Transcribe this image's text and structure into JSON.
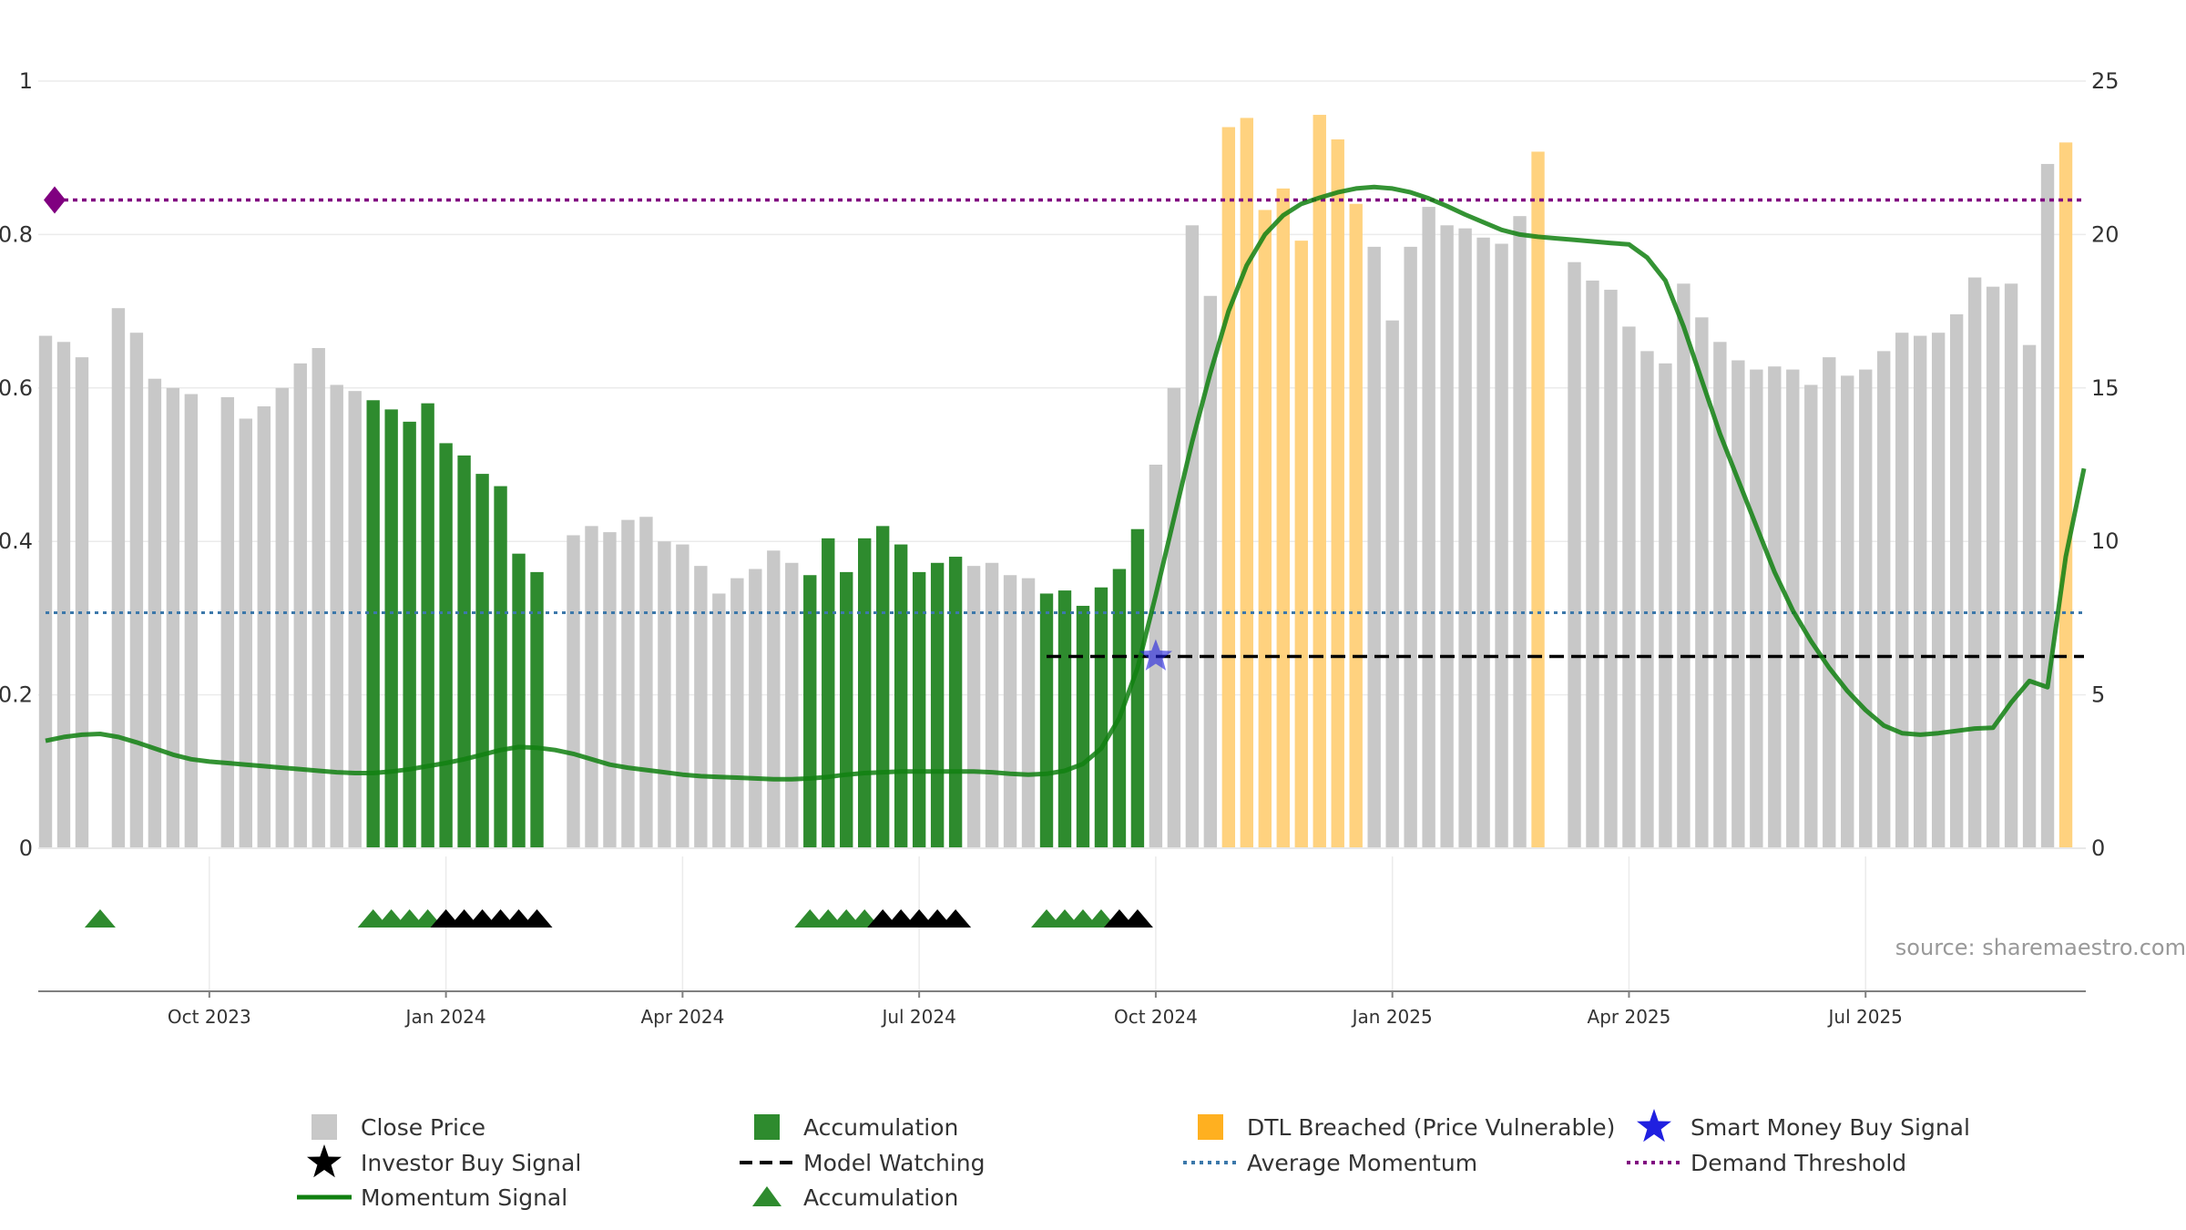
{
  "source_text": "source: sharemaestro.com",
  "colors": {
    "close_price": "#c8c8c8",
    "accumulation": "#2e8b2e",
    "dtl_breached": "#ffd27f",
    "momentum": "#108010",
    "avg_momentum": "#3c78aa",
    "demand_threshold": "#800080",
    "model_watching": "#000000",
    "smart_money": "#2020e0",
    "investor_signal": "#000000"
  },
  "legend": {
    "close_price": "Close Price",
    "accumulation_bar": "Accumulation",
    "dtl_breached": "DTL Breached (Price Vulnerable)",
    "smart_money": "Smart Money Buy Signal",
    "investor_buy": "Investor Buy Signal",
    "model_watching": "Model Watching",
    "avg_momentum": "Average Momentum",
    "demand_threshold": "Demand Threshold",
    "momentum_signal": "Momentum Signal",
    "accumulation_marker": "Accumulation"
  },
  "chart_data": {
    "type": "bar",
    "x_axis": {
      "tick_labels": [
        "Oct 2023",
        "Jan 2024",
        "Apr 2024",
        "Jul 2024",
        "Oct 2024",
        "Jan 2025",
        "Apr 2025",
        "Jul 2025"
      ],
      "tick_index": [
        9,
        22,
        35,
        48,
        61,
        74,
        87,
        100
      ],
      "total_bars": 113
    },
    "y_left": {
      "ticks": [
        "0",
        "0.2",
        "0.4",
        "0.6",
        "0.8",
        "1"
      ],
      "range": [
        0,
        1
      ]
    },
    "y_right": {
      "ticks": [
        "0",
        "5",
        "10",
        "15",
        "20",
        "25"
      ],
      "range": [
        0,
        25
      ]
    },
    "grid": true,
    "legend_position": "bottom",
    "price": [
      16.7,
      16.5,
      16.0,
      null,
      17.6,
      16.8,
      15.3,
      15.0,
      14.8,
      null,
      14.7,
      14.0,
      14.4,
      15.0,
      15.8,
      16.3,
      15.1,
      14.9,
      14.6,
      14.3,
      13.9,
      14.5,
      13.2,
      12.8,
      12.2,
      11.8,
      9.6,
      9.0,
      null,
      10.2,
      10.5,
      10.3,
      10.7,
      10.8,
      10.0,
      9.9,
      9.2,
      8.3,
      8.8,
      9.1,
      9.7,
      9.3,
      8.9,
      10.1,
      9.0,
      10.1,
      10.5,
      9.9,
      9.0,
      9.3,
      9.5,
      9.2,
      9.3,
      8.9,
      8.8,
      8.3,
      8.4,
      7.9,
      8.5,
      9.1,
      10.4,
      12.5,
      15.0,
      20.3,
      18.0,
      23.5,
      23.8,
      20.8,
      21.5,
      19.8,
      23.9,
      23.1,
      21.0,
      19.6,
      17.2,
      19.6,
      20.9,
      20.3,
      20.2,
      19.9,
      19.7,
      20.6,
      22.7,
      null,
      19.1,
      18.5,
      18.2,
      17.0,
      16.2,
      15.8,
      18.4,
      17.3,
      16.5,
      15.9,
      15.6,
      15.7,
      15.6,
      15.1,
      16.0,
      15.4,
      15.6,
      16.2,
      16.8,
      16.7,
      16.8,
      17.4,
      18.6,
      18.3,
      18.4,
      16.4,
      22.3,
      23.0
    ],
    "price_accumulation_zones": [
      [
        3,
        3
      ],
      [
        18,
        27
      ],
      [
        42,
        50
      ],
      [
        55,
        60
      ]
    ],
    "price_dtl_zones": [
      [
        65,
        72
      ],
      [
        82,
        82
      ],
      [
        111,
        112
      ]
    ],
    "momentum": [
      0.14,
      0.145,
      0.148,
      0.149,
      0.145,
      0.138,
      0.13,
      0.122,
      0.116,
      0.113,
      0.111,
      0.109,
      0.107,
      0.105,
      0.103,
      0.101,
      0.099,
      0.098,
      0.098,
      0.1,
      0.103,
      0.107,
      0.111,
      0.116,
      0.122,
      0.128,
      0.132,
      0.131,
      0.128,
      0.123,
      0.116,
      0.109,
      0.105,
      0.102,
      0.099,
      0.096,
      0.094,
      0.093,
      0.092,
      0.091,
      0.09,
      0.09,
      0.091,
      0.093,
      0.096,
      0.098,
      0.099,
      0.1,
      0.1,
      0.1,
      0.1,
      0.1,
      0.099,
      0.097,
      0.096,
      0.097,
      0.101,
      0.11,
      0.13,
      0.17,
      0.235,
      0.33,
      0.43,
      0.53,
      0.62,
      0.7,
      0.76,
      0.8,
      0.825,
      0.84,
      0.848,
      0.855,
      0.86,
      0.862,
      0.86,
      0.855,
      0.847,
      0.837,
      0.826,
      0.816,
      0.806,
      0.8,
      0.797,
      0.795,
      0.793,
      0.791,
      0.789,
      0.787,
      0.77,
      0.74,
      0.68,
      0.61,
      0.54,
      0.48,
      0.42,
      0.36,
      0.31,
      0.27,
      0.235,
      0.205,
      0.18,
      0.16,
      0.15,
      0.148,
      0.15,
      0.153,
      0.156,
      0.157,
      0.19,
      0.218,
      0.21,
      0.38,
      0.495
    ],
    "avg_momentum": 0.307,
    "demand_threshold": 0.845,
    "model_watching_level": 0.25,
    "model_watching_range": [
      55,
      112
    ],
    "smart_money_buy": {
      "index": 61,
      "value": 0.25
    },
    "accumulation_markers": [
      3,
      18,
      19,
      20,
      21,
      42,
      43,
      44,
      45,
      55,
      56,
      57,
      58
    ],
    "investor_buy_markers": [
      22,
      23,
      24,
      25,
      26,
      27,
      46,
      47,
      48,
      49,
      50,
      59,
      60
    ]
  }
}
